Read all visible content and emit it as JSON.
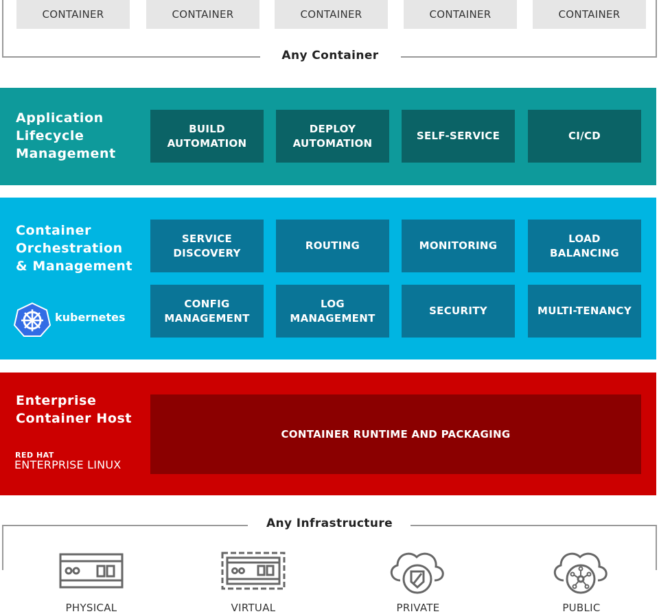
{
  "top": {
    "containers": [
      "CONTAINER",
      "CONTAINER",
      "CONTAINER",
      "CONTAINER",
      "CONTAINER"
    ],
    "label": "Any Container"
  },
  "alm": {
    "title": "Application\nLifecycle\nManagement",
    "color": "#0e9a9b",
    "tiles": [
      "BUILD\nAUTOMATION",
      "DEPLOY\nAUTOMATION",
      "SELF-SERVICE",
      "CI/CD"
    ]
  },
  "com": {
    "title": "Container\nOrchestration\n& Management",
    "color": "#00b5e2",
    "logo_text": "kubernetes",
    "tiles": [
      "SERVICE\nDISCOVERY",
      "ROUTING",
      "MONITORING",
      "LOAD\nBALANCING",
      "CONFIG\nMANAGEMENT",
      "LOG\nMANAGEMENT",
      "SECURITY",
      "MULTI-TENANCY"
    ]
  },
  "ech": {
    "title": "Enterprise\nContainer Host",
    "color": "#cc0000",
    "logo_line1": "RED HAT",
    "logo_line2": "ENTERPRISE LINUX",
    "runtime": "CONTAINER RUNTIME AND PACKAGING"
  },
  "infra": {
    "label": "Any Infrastructure",
    "items": [
      {
        "label": "PHYSICAL",
        "icon": "server-icon"
      },
      {
        "label": "VIRTUAL",
        "icon": "virtual-server-icon"
      },
      {
        "label": "PRIVATE",
        "icon": "private-cloud-icon"
      },
      {
        "label": "PUBLIC",
        "icon": "public-cloud-icon"
      }
    ]
  }
}
